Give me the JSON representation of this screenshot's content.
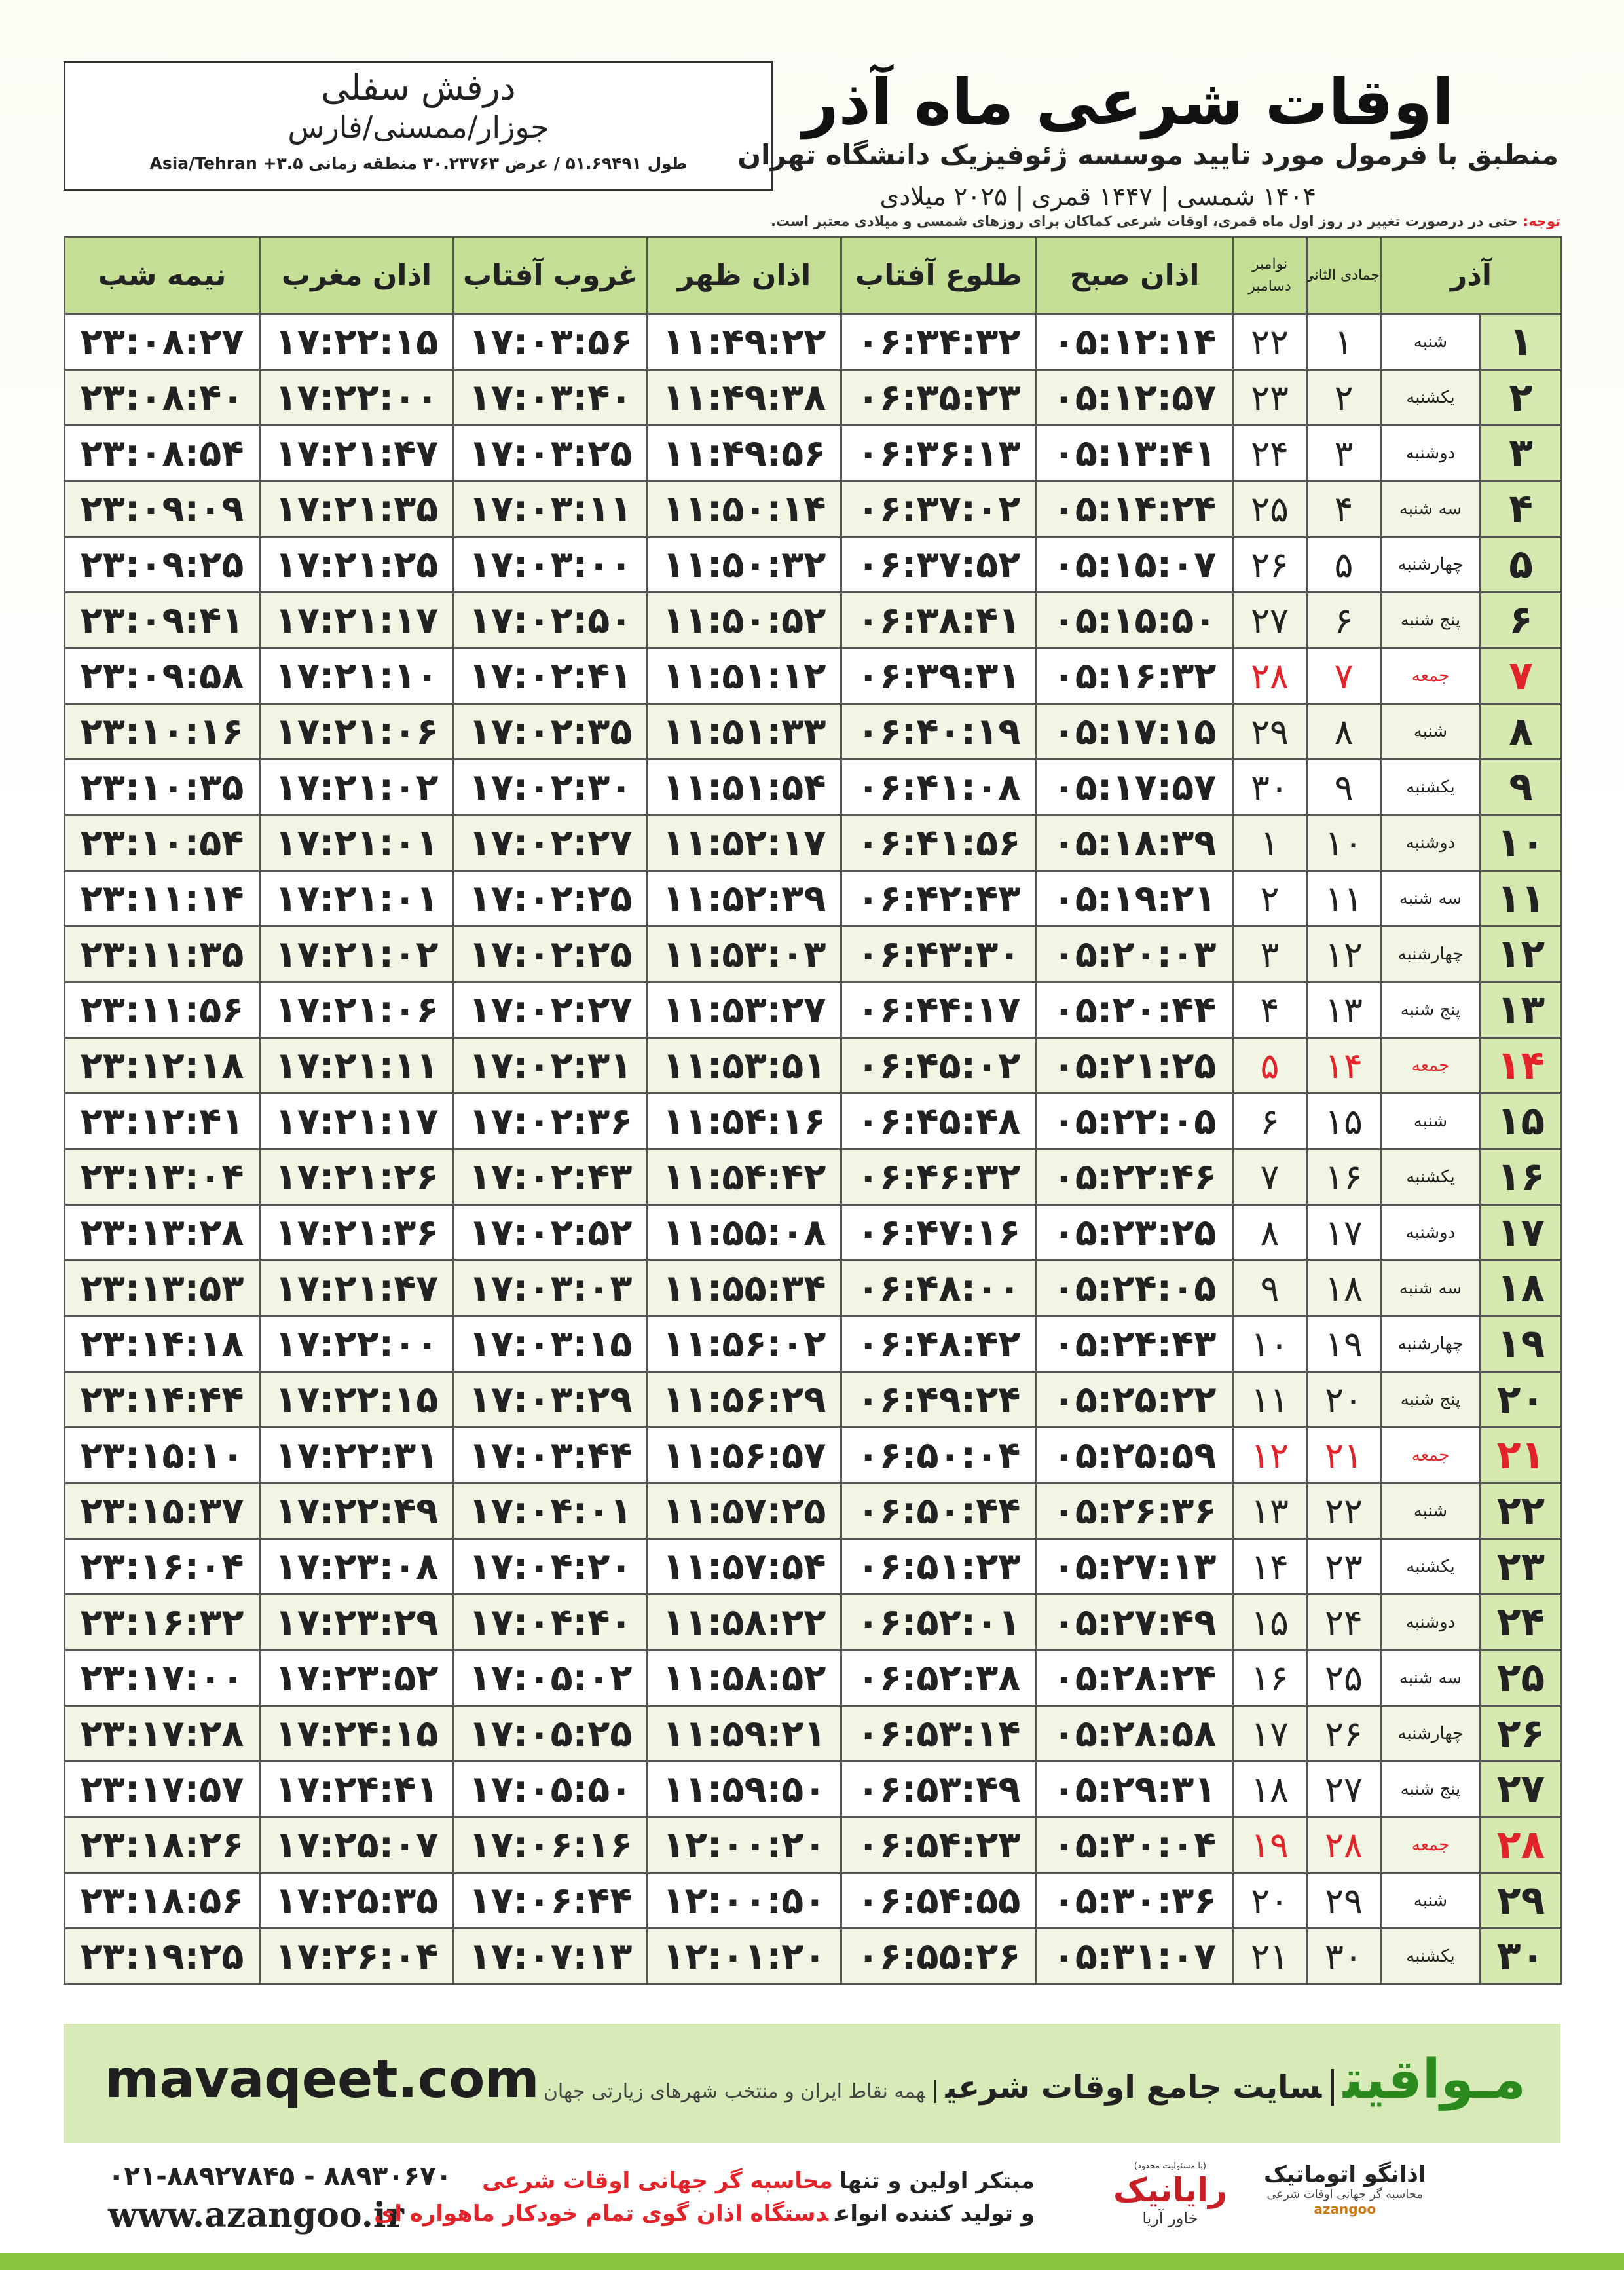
{
  "header": {
    "location": "درفش سفلی",
    "region": "جوزار/ممسنی/فارس",
    "coords": "طول ۵۱.۶۹۴۹۱ / عرض ۳۰.۲۳۷۶۳ منطقه زمانی ۳.۵+ Asia/Tehran",
    "title": "اوقات شرعی ماه آذر",
    "subtitle": "منطبق با فرمول مورد تایید موسسه ژئوفیزیک دانشگاه تهران",
    "dates": "۱۴۰۴ شمسی | ۱۴۴۷ قمری | ۲۰۲۵ میلادی",
    "note_label": "توجه:",
    "note": "حتی در درصورت تغییر در روز اول ماه قمری، اوقات شرعی کماکان برای روزهای شمسی و میلادی معتبر است."
  },
  "table": {
    "columns": [
      "آذر",
      "جمادی الثانی",
      "نوامبر",
      "دسامبر",
      "اذان صبح",
      "طلوع آفتاب",
      "اذان ظهر",
      "غروب آفتاب",
      "اذان مغرب",
      "نیمه شب"
    ],
    "rows": [
      {
        "cells": [
          "۱",
          "شنبه",
          "۱",
          "۲۲",
          "۰۵:۱۲:۱۴",
          "۰۶:۳۴:۳۲",
          "۱۱:۴۹:۲۲",
          "۱۷:۰۳:۵۶",
          "۱۷:۲۲:۱۵",
          "۲۳:۰۸:۲۷"
        ]
      },
      {
        "cells": [
          "۲",
          "یکشنبه",
          "۲",
          "۲۳",
          "۰۵:۱۲:۵۷",
          "۰۶:۳۵:۲۳",
          "۱۱:۴۹:۳۸",
          "۱۷:۰۳:۴۰",
          "۱۷:۲۲:۰۰",
          "۲۳:۰۸:۴۰"
        ]
      },
      {
        "cells": [
          "۳",
          "دوشنبه",
          "۳",
          "۲۴",
          "۰۵:۱۳:۴۱",
          "۰۶:۳۶:۱۳",
          "۱۱:۴۹:۵۶",
          "۱۷:۰۳:۲۵",
          "۱۷:۲۱:۴۷",
          "۲۳:۰۸:۵۴"
        ]
      },
      {
        "cells": [
          "۴",
          "سه شنبه",
          "۴",
          "۲۵",
          "۰۵:۱۴:۲۴",
          "۰۶:۳۷:۰۲",
          "۱۱:۵۰:۱۴",
          "۱۷:۰۳:۱۱",
          "۱۷:۲۱:۳۵",
          "۲۳:۰۹:۰۹"
        ]
      },
      {
        "cells": [
          "۵",
          "چهارشنبه",
          "۵",
          "۲۶",
          "۰۵:۱۵:۰۷",
          "۰۶:۳۷:۵۲",
          "۱۱:۵۰:۳۲",
          "۱۷:۰۳:۰۰",
          "۱۷:۲۱:۲۵",
          "۲۳:۰۹:۲۵"
        ]
      },
      {
        "cells": [
          "۶",
          "پنج شنبه",
          "۶",
          "۲۷",
          "۰۵:۱۵:۵۰",
          "۰۶:۳۸:۴۱",
          "۱۱:۵۰:۵۲",
          "۱۷:۰۲:۵۰",
          "۱۷:۲۱:۱۷",
          "۲۳:۰۹:۴۱"
        ]
      },
      {
        "cells": [
          "۷",
          "جمعه",
          "۷",
          "۲۸",
          "۰۵:۱۶:۳۲",
          "۰۶:۳۹:۳۱",
          "۱۱:۵۱:۱۲",
          "۱۷:۰۲:۴۱",
          "۱۷:۲۱:۱۰",
          "۲۳:۰۹:۵۸"
        ],
        "color": "#e3232a"
      },
      {
        "cells": [
          "۸",
          "شنبه",
          "۸",
          "۲۹",
          "۰۵:۱۷:۱۵",
          "۰۶:۴۰:۱۹",
          "۱۱:۵۱:۳۳",
          "۱۷:۰۲:۳۵",
          "۱۷:۲۱:۰۶",
          "۲۳:۱۰:۱۶"
        ]
      },
      {
        "cells": [
          "۹",
          "یکشنبه",
          "۹",
          "۳۰",
          "۰۵:۱۷:۵۷",
          "۰۶:۴۱:۰۸",
          "۱۱:۵۱:۵۴",
          "۱۷:۰۲:۳۰",
          "۱۷:۲۱:۰۲",
          "۲۳:۱۰:۳۵"
        ]
      },
      {
        "cells": [
          "۱۰",
          "دوشنبه",
          "۱۰",
          "۱",
          "۰۵:۱۸:۳۹",
          "۰۶:۴۱:۵۶",
          "۱۱:۵۲:۱۷",
          "۱۷:۰۲:۲۷",
          "۱۷:۲۱:۰۱",
          "۲۳:۱۰:۵۴"
        ]
      },
      {
        "cells": [
          "۱۱",
          "سه شنبه",
          "۱۱",
          "۲",
          "۰۵:۱۹:۲۱",
          "۰۶:۴۲:۴۳",
          "۱۱:۵۲:۳۹",
          "۱۷:۰۲:۲۵",
          "۱۷:۲۱:۰۱",
          "۲۳:۱۱:۱۴"
        ]
      },
      {
        "cells": [
          "۱۲",
          "چهارشنبه",
          "۱۲",
          "۳",
          "۰۵:۲۰:۰۳",
          "۰۶:۴۳:۳۰",
          "۱۱:۵۳:۰۳",
          "۱۷:۰۲:۲۵",
          "۱۷:۲۱:۰۲",
          "۲۳:۱۱:۳۵"
        ]
      },
      {
        "cells": [
          "۱۳",
          "پنج شنبه",
          "۱۳",
          "۴",
          "۰۵:۲۰:۴۴",
          "۰۶:۴۴:۱۷",
          "۱۱:۵۳:۲۷",
          "۱۷:۰۲:۲۷",
          "۱۷:۲۱:۰۶",
          "۲۳:۱۱:۵۶"
        ]
      },
      {
        "cells": [
          "۱۴",
          "جمعه",
          "۱۴",
          "۵",
          "۰۵:۲۱:۲۵",
          "۰۶:۴۵:۰۲",
          "۱۱:۵۳:۵۱",
          "۱۷:۰۲:۳۱",
          "۱۷:۲۱:۱۱",
          "۲۳:۱۲:۱۸"
        ],
        "color": "#e3232a"
      },
      {
        "cells": [
          "۱۵",
          "شنبه",
          "۱۵",
          "۶",
          "۰۵:۲۲:۰۵",
          "۰۶:۴۵:۴۸",
          "۱۱:۵۴:۱۶",
          "۱۷:۰۲:۳۶",
          "۱۷:۲۱:۱۷",
          "۲۳:۱۲:۴۱"
        ]
      },
      {
        "cells": [
          "۱۶",
          "یکشنبه",
          "۱۶",
          "۷",
          "۰۵:۲۲:۴۶",
          "۰۶:۴۶:۳۲",
          "۱۱:۵۴:۴۲",
          "۱۷:۰۲:۴۳",
          "۱۷:۲۱:۲۶",
          "۲۳:۱۳:۰۴"
        ]
      },
      {
        "cells": [
          "۱۷",
          "دوشنبه",
          "۱۷",
          "۸",
          "۰۵:۲۳:۲۵",
          "۰۶:۴۷:۱۶",
          "۱۱:۵۵:۰۸",
          "۱۷:۰۲:۵۲",
          "۱۷:۲۱:۳۶",
          "۲۳:۱۳:۲۸"
        ]
      },
      {
        "cells": [
          "۱۸",
          "سه شنبه",
          "۱۸",
          "۹",
          "۰۵:۲۴:۰۵",
          "۰۶:۴۸:۰۰",
          "۱۱:۵۵:۳۴",
          "۱۷:۰۳:۰۳",
          "۱۷:۲۱:۴۷",
          "۲۳:۱۳:۵۳"
        ]
      },
      {
        "cells": [
          "۱۹",
          "چهارشنبه",
          "۱۹",
          "۱۰",
          "۰۵:۲۴:۴۳",
          "۰۶:۴۸:۴۲",
          "۱۱:۵۶:۰۲",
          "۱۷:۰۳:۱۵",
          "۱۷:۲۲:۰۰",
          "۲۳:۱۴:۱۸"
        ]
      },
      {
        "cells": [
          "۲۰",
          "پنج شنبه",
          "۲۰",
          "۱۱",
          "۰۵:۲۵:۲۲",
          "۰۶:۴۹:۲۴",
          "۱۱:۵۶:۲۹",
          "۱۷:۰۳:۲۹",
          "۱۷:۲۲:۱۵",
          "۲۳:۱۴:۴۴"
        ]
      },
      {
        "cells": [
          "۲۱",
          "جمعه",
          "۲۱",
          "۱۲",
          "۰۵:۲۵:۵۹",
          "۰۶:۵۰:۰۴",
          "۱۱:۵۶:۵۷",
          "۱۷:۰۳:۴۴",
          "۱۷:۲۲:۳۱",
          "۲۳:۱۵:۱۰"
        ],
        "color": "#e3232a"
      },
      {
        "cells": [
          "۲۲",
          "شنبه",
          "۲۲",
          "۱۳",
          "۰۵:۲۶:۳۶",
          "۰۶:۵۰:۴۴",
          "۱۱:۵۷:۲۵",
          "۱۷:۰۴:۰۱",
          "۱۷:۲۲:۴۹",
          "۲۳:۱۵:۳۷"
        ]
      },
      {
        "cells": [
          "۲۳",
          "یکشنبه",
          "۲۳",
          "۱۴",
          "۰۵:۲۷:۱۳",
          "۰۶:۵۱:۲۳",
          "۱۱:۵۷:۵۴",
          "۱۷:۰۴:۲۰",
          "۱۷:۲۳:۰۸",
          "۲۳:۱۶:۰۴"
        ]
      },
      {
        "cells": [
          "۲۴",
          "دوشنبه",
          "۲۴",
          "۱۵",
          "۰۵:۲۷:۴۹",
          "۰۶:۵۲:۰۱",
          "۱۱:۵۸:۲۲",
          "۱۷:۰۴:۴۰",
          "۱۷:۲۳:۲۹",
          "۲۳:۱۶:۳۲"
        ]
      },
      {
        "cells": [
          "۲۵",
          "سه شنبه",
          "۲۵",
          "۱۶",
          "۰۵:۲۸:۲۴",
          "۰۶:۵۲:۳۸",
          "۱۱:۵۸:۵۲",
          "۱۷:۰۵:۰۲",
          "۱۷:۲۳:۵۲",
          "۲۳:۱۷:۰۰"
        ]
      },
      {
        "cells": [
          "۲۶",
          "چهارشنبه",
          "۲۶",
          "۱۷",
          "۰۵:۲۸:۵۸",
          "۰۶:۵۳:۱۴",
          "۱۱:۵۹:۲۱",
          "۱۷:۰۵:۲۵",
          "۱۷:۲۴:۱۵",
          "۲۳:۱۷:۲۸"
        ]
      },
      {
        "cells": [
          "۲۷",
          "پنج شنبه",
          "۲۷",
          "۱۸",
          "۰۵:۲۹:۳۱",
          "۰۶:۵۳:۴۹",
          "۱۱:۵۹:۵۰",
          "۱۷:۰۵:۵۰",
          "۱۷:۲۴:۴۱",
          "۲۳:۱۷:۵۷"
        ]
      },
      {
        "cells": [
          "۲۸",
          "جمعه",
          "۲۸",
          "۱۹",
          "۰۵:۳۰:۰۴",
          "۰۶:۵۴:۲۳",
          "۱۲:۰۰:۲۰",
          "۱۷:۰۶:۱۶",
          "۱۷:۲۵:۰۷",
          "۲۳:۱۸:۲۶"
        ],
        "color": "#e3232a"
      },
      {
        "cells": [
          "۲۹",
          "شنبه",
          "۲۹",
          "۲۰",
          "۰۵:۳۰:۳۶",
          "۰۶:۵۴:۵۵",
          "۱۲:۰۰:۵۰",
          "۱۷:۰۶:۴۴",
          "۱۷:۲۵:۳۵",
          "۲۳:۱۸:۵۶"
        ]
      },
      {
        "cells": [
          "۳۰",
          "یکشنبه",
          "۳۰",
          "۲۱",
          "۰۵:۳۱:۰۷",
          "۰۶:۵۵:۲۶",
          "۱۲:۰۱:۲۰",
          "۱۷:۰۷:۱۳",
          "۱۷:۲۶:۰۴",
          "۲۳:۱۹:۲۵"
        ]
      }
    ]
  },
  "footer": {
    "brand": "مـواقیت",
    "slogan": "سایت جامع اوقات شرعی",
    "tagline": "همه نقاط ایران و منتخب شهرهای زیارتی جهان",
    "website": "mavaqeet.com",
    "phone": "۰۲۱-۸۸۹۲۷۸۴۵ - ۸۸۹۳۰۶۷۰",
    "url": "www.azangoo.ir",
    "line1": [
      "مبتکر اولین و تنها",
      "محاسبه گر جهانی اوقات شرعی"
    ],
    "line2": [
      "و تولید کننده انواع",
      "دستگاه اذان گوی تمام خودکار ماهواره ای"
    ],
    "logo1_note": "(با مسئولیت محدود)",
    "logo1": "رایانیک",
    "logo1_sub": "خاور آریا",
    "logo2": "اذانگو اتوماتیک",
    "logo2_sub": "محاسبه گر جهانی اوقات شرعی",
    "logo2_brand": "azangoo"
  }
}
